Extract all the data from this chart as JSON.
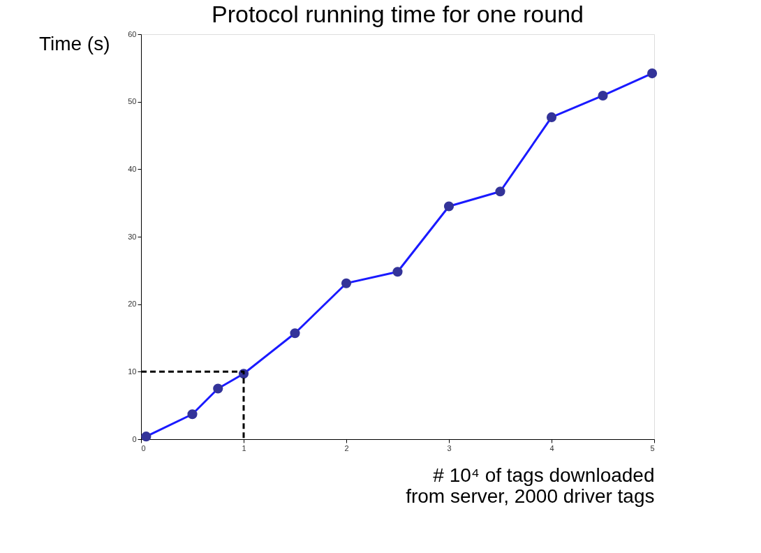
{
  "chart_data": {
    "type": "line",
    "title": "Protocol running time for one round",
    "xlabel": "# 10⁴ of tags downloaded\nfrom server, 2000 driver tags",
    "ylabel": "Time (s)",
    "xlim": [
      0,
      5
    ],
    "xticks": [
      0,
      1,
      2,
      3,
      4,
      5
    ],
    "ylim": [
      0,
      60
    ],
    "yticks": [
      0,
      10,
      20,
      30,
      40,
      50,
      60
    ],
    "grid": false,
    "series": [
      {
        "color": "#1a1aff",
        "marker": "circle",
        "line_style": "solid",
        "x": [
          0.05,
          0.5,
          0.75,
          1,
          1.5,
          2,
          2.5,
          3,
          3.5,
          4,
          4.5,
          4.98
        ],
        "values": [
          0.4,
          3.7,
          7.5,
          9.7,
          15.7,
          23.1,
          24.8,
          34.5,
          36.7,
          47.7,
          50.9,
          54.2
        ]
      },
      {
        "color": "#000000",
        "marker": "none",
        "line_style": "dashed",
        "x": [
          0,
          1,
          1
        ],
        "values": [
          10,
          10,
          0
        ]
      }
    ]
  }
}
